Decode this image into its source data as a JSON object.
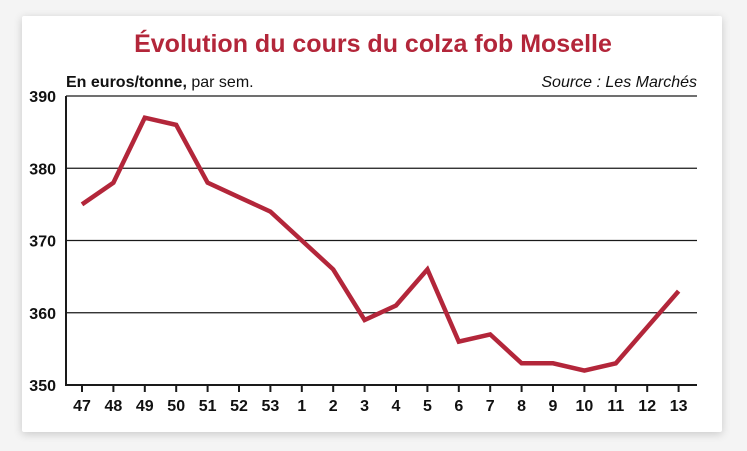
{
  "chart_data": {
    "type": "line",
    "title": "Évolution du cours du colza fob Moselle",
    "ylabel_bold": "En euros/tonne,",
    "ylabel_rest": " par sem.",
    "source": "Source : Les Marchés",
    "xlabel": "",
    "categories": [
      "47",
      "48",
      "49",
      "50",
      "51",
      "52",
      "53",
      "1",
      "2",
      "3",
      "4",
      "5",
      "6",
      "7",
      "8",
      "9",
      "10",
      "11",
      "12",
      "13"
    ],
    "series": [
      {
        "values": [
          375,
          378,
          387,
          386,
          378,
          376,
          374,
          370,
          366,
          359,
          361,
          366,
          356,
          357,
          353,
          353,
          352,
          353,
          358,
          363
        ]
      }
    ],
    "yticks": [
      "350",
      "360",
      "370",
      "380",
      "390"
    ],
    "ylim": [
      350,
      390
    ],
    "grid": true,
    "colors": {
      "series": "#b3263a",
      "title": "#b3263a",
      "axis": "#1a1a1a"
    }
  }
}
